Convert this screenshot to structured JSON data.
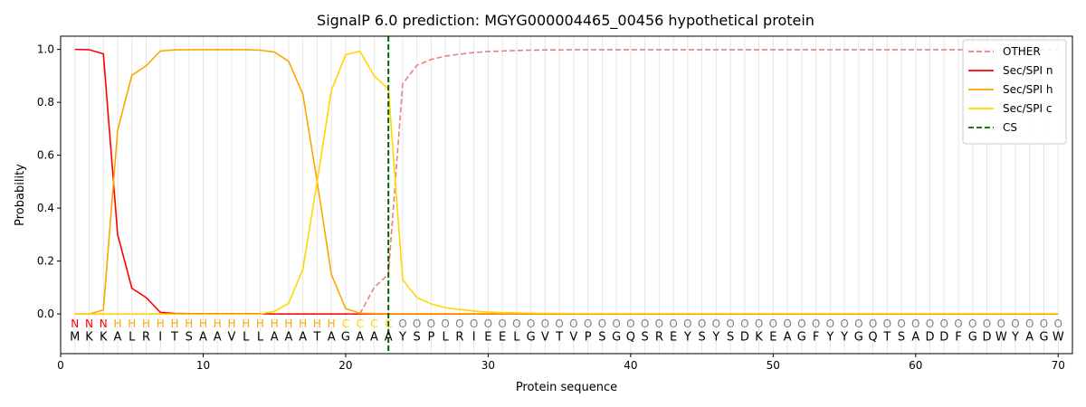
{
  "chart_data": {
    "type": "line",
    "title": "SignalP 6.0 prediction: MGYG000004465_00456 hypothetical protein",
    "xlabel": "Protein sequence",
    "ylabel": "Probability",
    "xlim": [
      0,
      71
    ],
    "ylim": [
      -0.15,
      1.05
    ],
    "xticks": [
      0,
      10,
      20,
      30,
      40,
      50,
      60,
      70
    ],
    "yticks": [
      0.0,
      0.2,
      0.4,
      0.6,
      0.8,
      1.0
    ],
    "xtick_labels": [
      "0",
      "10",
      "20",
      "30",
      "40",
      "50",
      "60",
      "70"
    ],
    "ytick_labels": [
      "0.0",
      "0.2",
      "0.4",
      "0.6",
      "0.8",
      "1.0"
    ],
    "grid": "vertical lines at each residue",
    "legend_position": "top-right",
    "sequence": [
      "M",
      "K",
      "K",
      "A",
      "L",
      "R",
      "I",
      "T",
      "S",
      "A",
      "A",
      "V",
      "L",
      "L",
      "A",
      "A",
      "A",
      "T",
      "A",
      "G",
      "A",
      "A",
      "A",
      "Y",
      "S",
      "P",
      "L",
      "R",
      "I",
      "E",
      "E",
      "L",
      "G",
      "V",
      "T",
      "V",
      "P",
      "S",
      "G",
      "Q",
      "S",
      "R",
      "E",
      "Y",
      "S",
      "Y",
      "S",
      "D",
      "K",
      "E",
      "A",
      "G",
      "F",
      "Y",
      "Y",
      "G",
      "Q",
      "T",
      "S",
      "A",
      "D",
      "D",
      "F",
      "G",
      "D",
      "W",
      "Y",
      "A",
      "G",
      "W"
    ],
    "labels": [
      "N",
      "N",
      "N",
      "H",
      "H",
      "H",
      "H",
      "H",
      "H",
      "H",
      "H",
      "H",
      "H",
      "H",
      "H",
      "H",
      "H",
      "H",
      "H",
      "C",
      "C",
      "C",
      "C",
      "O",
      "O",
      "O",
      "O",
      "O",
      "O",
      "O",
      "O",
      "O",
      "O",
      "O",
      "O",
      "O",
      "O",
      "O",
      "O",
      "O",
      "O",
      "O",
      "O",
      "O",
      "O",
      "O",
      "O",
      "O",
      "O",
      "O",
      "O",
      "O",
      "O",
      "O",
      "O",
      "O",
      "O",
      "O",
      "O",
      "O",
      "O",
      "O",
      "O",
      "O",
      "O",
      "O",
      "O",
      "O",
      "O",
      "O"
    ],
    "label_colors": {
      "N": "#ff0000",
      "H": "#ffa500",
      "C": "#ffd700",
      "O": "#808080"
    },
    "series": [
      {
        "name": "OTHER",
        "color": "#e88080",
        "dash": "dashed",
        "values": [
          0,
          0,
          0,
          0,
          0,
          0,
          0,
          0,
          0,
          0,
          0,
          0,
          0,
          0,
          0,
          0,
          0,
          0,
          0,
          0,
          0,
          0.1,
          0.15,
          0.87,
          0.94,
          0.962,
          0.975,
          0.982,
          0.988,
          0.992,
          0.994,
          0.996,
          0.997,
          0.998,
          0.998,
          0.999,
          0.999,
          0.999,
          0.999,
          0.999,
          0.999,
          0.999,
          0.999,
          0.999,
          0.999,
          0.999,
          0.999,
          0.999,
          0.999,
          0.999,
          0.999,
          0.999,
          0.999,
          0.999,
          0.999,
          0.999,
          0.999,
          0.999,
          0.999,
          0.999,
          0.999,
          0.999,
          0.999,
          0.999,
          0.999,
          0.999,
          0.999,
          0.999,
          0.999,
          0.999
        ]
      },
      {
        "name": "Sec/SPI n",
        "color": "#ff0000",
        "dash": "solid",
        "values": [
          1.0,
          0.999,
          0.983,
          0.3,
          0.097,
          0.062,
          0.006,
          0.002,
          0.001,
          0.001,
          0.001,
          0.001,
          0.001,
          0.001,
          0,
          0,
          0,
          0,
          0,
          0,
          0,
          0,
          0,
          0,
          0,
          0,
          0,
          0,
          0,
          0,
          0,
          0,
          0,
          0,
          0,
          0,
          0,
          0,
          0,
          0,
          0,
          0,
          0,
          0,
          0,
          0,
          0,
          0,
          0,
          0,
          0,
          0,
          0,
          0,
          0,
          0,
          0,
          0,
          0,
          0,
          0,
          0,
          0,
          0,
          0,
          0,
          0,
          0,
          0,
          0
        ]
      },
      {
        "name": "Sec/SPI h",
        "color": "#ffa500",
        "dash": "solid",
        "values": [
          0,
          0,
          0.015,
          0.695,
          0.902,
          0.938,
          0.994,
          0.998,
          0.999,
          0.999,
          0.999,
          0.999,
          0.999,
          0.997,
          0.99,
          0.955,
          0.83,
          0.5,
          0.15,
          0.02,
          0.003,
          0.002,
          0.001,
          0.001,
          0.001,
          0.001,
          0.001,
          0.001,
          0.001,
          0.001,
          0.001,
          0.001,
          0.001,
          0.001,
          0.001,
          0.001,
          0.001,
          0.001,
          0.001,
          0.001,
          0.001,
          0.001,
          0.001,
          0.001,
          0.001,
          0.001,
          0.001,
          0.001,
          0.001,
          0.001,
          0.001,
          0.001,
          0.001,
          0.001,
          0.001,
          0.001,
          0.001,
          0.001,
          0.001,
          0.001,
          0.001,
          0.001,
          0.001,
          0.001,
          0.001,
          0.001,
          0.001,
          0.001,
          0.001,
          0.001
        ]
      },
      {
        "name": "Sec/SPI c",
        "color": "#ffd700",
        "dash": "solid",
        "values": [
          0,
          0,
          0,
          0,
          0,
          0,
          0,
          0,
          0,
          0,
          0,
          0,
          0,
          0,
          0.01,
          0.04,
          0.17,
          0.5,
          0.845,
          0.98,
          0.993,
          0.9,
          0.85,
          0.13,
          0.062,
          0.038,
          0.024,
          0.017,
          0.011,
          0.007,
          0.005,
          0.004,
          0.003,
          0.002,
          0.002,
          0.001,
          0.001,
          0.001,
          0.001,
          0.001,
          0.001,
          0.001,
          0.001,
          0.001,
          0.001,
          0.001,
          0.001,
          0.001,
          0.001,
          0.001,
          0.001,
          0.001,
          0.001,
          0.001,
          0.001,
          0.001,
          0.001,
          0.001,
          0.001,
          0.001,
          0.001,
          0.001,
          0.001,
          0.001,
          0.001,
          0.001,
          0.001,
          0.001,
          0.001,
          0.001
        ]
      }
    ],
    "cleavage_site": {
      "name": "CS",
      "x": 23,
      "color": "#006400",
      "dash": "dashed"
    }
  }
}
